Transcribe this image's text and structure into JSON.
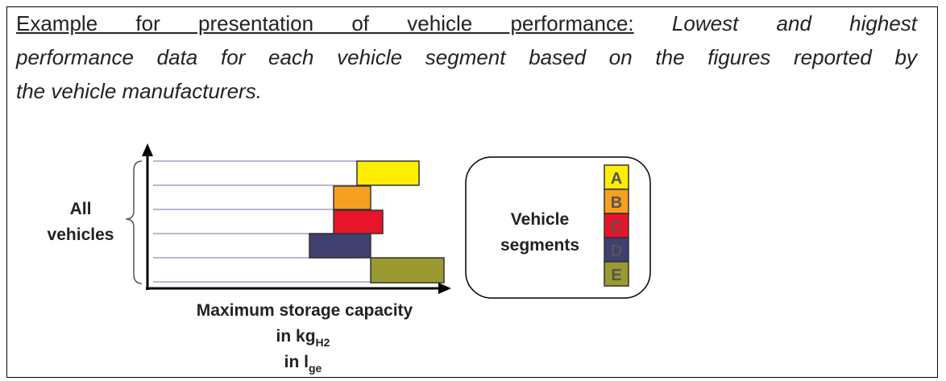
{
  "header": {
    "intro": "Example for presentation of vehicle performance:",
    "lines": [
      "Lowest and highest",
      "performance data for each vehicle segment based on the figures reported by",
      "the vehicle manufacturers."
    ]
  },
  "chart": {
    "y_label": [
      "All",
      "vehicles"
    ],
    "x_label": [
      "Maximum storage capacity",
      "in kg",
      "H2",
      "in l",
      "ge"
    ]
  },
  "legend": {
    "title": [
      "Vehicle",
      "segments"
    ],
    "segments": [
      "A",
      "B",
      "C",
      "D",
      "E"
    ]
  }
}
